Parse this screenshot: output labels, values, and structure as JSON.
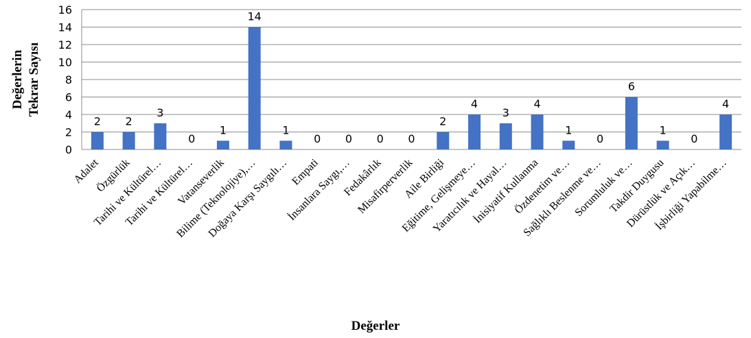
{
  "chart_data": {
    "type": "bar",
    "title": "",
    "xlabel": "Değerler",
    "ylabel_lines": [
      "Değerlerin",
      "Tekrar Sayısı"
    ],
    "ylim": [
      0,
      16
    ],
    "yticks": [
      0,
      2,
      4,
      6,
      8,
      10,
      12,
      14,
      16
    ],
    "grid": true,
    "bar_color": "#4472c4",
    "data_labels": true,
    "categories": [
      "Adalet",
      "Özgürlük",
      "Tarihi ve Kültürel…",
      "Tarihi ve Kültürel…",
      "Vatanseverlik",
      "Bilime (Teknolojiye),…",
      "Doğaya Karşı Saygılı…",
      "Empati",
      "İnsanlara Saygı,…",
      "Fedakârlık",
      "Misafirperverlik",
      "Aile Birliği",
      "Eğitime, Gelişmeye…",
      "Yaratıcılık ve Hayal…",
      "İnisiyatif Kullanma",
      "Özdenetim ve…",
      "Sağlıklı Beslenme ve…",
      "Sorumluluk ve…",
      "Takdir Duygusu",
      "Dürüstlük ve Açık…",
      "İşbirliği Yapabilme…"
    ],
    "values": [
      2,
      2,
      3,
      0,
      1,
      14,
      1,
      0,
      0,
      0,
      0,
      2,
      4,
      3,
      4,
      1,
      0,
      6,
      1,
      0,
      4
    ]
  }
}
